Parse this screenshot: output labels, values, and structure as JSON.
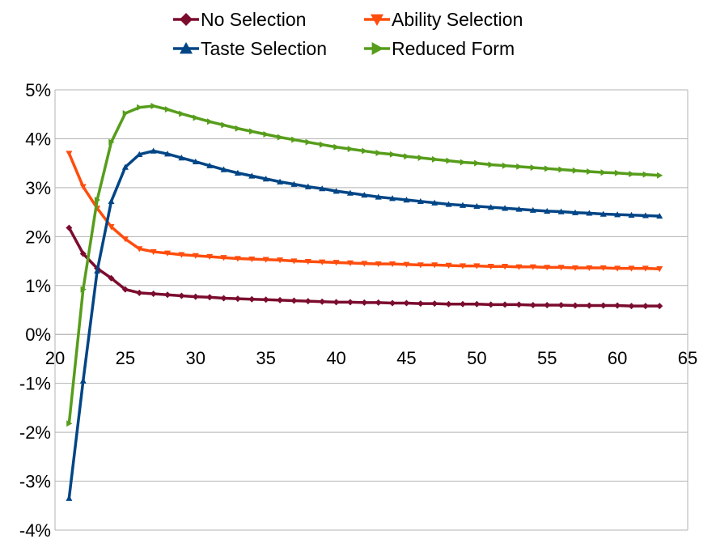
{
  "chart_data": {
    "type": "line",
    "title": "",
    "xlabel": "",
    "ylabel": "",
    "xlim": [
      20,
      65
    ],
    "ylim": [
      -4,
      5
    ],
    "x_ticks": [
      "20",
      "25",
      "30",
      "35",
      "40",
      "45",
      "50",
      "55",
      "60",
      "65"
    ],
    "y_ticks": [
      "5%",
      "4%",
      "3%",
      "2%",
      "1%",
      "0%",
      "-1%",
      "-2%",
      "-3%",
      "-4%"
    ],
    "grid": "horizontal",
    "legend_position": "top",
    "x": [
      21,
      22,
      23,
      24,
      25,
      26,
      27,
      28,
      29,
      30,
      31,
      32,
      33,
      34,
      35,
      36,
      37,
      38,
      39,
      40,
      41,
      42,
      43,
      44,
      45,
      46,
      47,
      48,
      49,
      50,
      51,
      52,
      53,
      54,
      55,
      56,
      57,
      58,
      59,
      60,
      61,
      62,
      63
    ],
    "series": [
      {
        "name": "No Selection",
        "color": "#7b0c2e",
        "marker": "diamond",
        "values": [
          2.18,
          1.65,
          1.35,
          1.15,
          0.92,
          0.85,
          0.83,
          0.81,
          0.79,
          0.77,
          0.76,
          0.74,
          0.73,
          0.72,
          0.71,
          0.7,
          0.69,
          0.68,
          0.67,
          0.66,
          0.66,
          0.65,
          0.65,
          0.64,
          0.64,
          0.63,
          0.63,
          0.62,
          0.62,
          0.62,
          0.61,
          0.61,
          0.61,
          0.6,
          0.6,
          0.6,
          0.59,
          0.59,
          0.59,
          0.59,
          0.58,
          0.58,
          0.58
        ]
      },
      {
        "name": "Ability Selection",
        "color": "#ff4d0d",
        "marker": "triangle-down",
        "values": [
          3.7,
          3.02,
          2.58,
          2.2,
          1.95,
          1.75,
          1.69,
          1.66,
          1.63,
          1.61,
          1.59,
          1.57,
          1.55,
          1.54,
          1.53,
          1.52,
          1.5,
          1.49,
          1.48,
          1.47,
          1.46,
          1.45,
          1.44,
          1.44,
          1.43,
          1.42,
          1.42,
          1.41,
          1.4,
          1.4,
          1.39,
          1.39,
          1.38,
          1.38,
          1.37,
          1.37,
          1.36,
          1.36,
          1.36,
          1.35,
          1.35,
          1.35,
          1.34
        ]
      },
      {
        "name": "Taste Selection",
        "color": "#004586",
        "marker": "triangle-up",
        "values": [
          -3.35,
          -0.95,
          1.3,
          2.72,
          3.42,
          3.68,
          3.75,
          3.69,
          3.61,
          3.53,
          3.45,
          3.37,
          3.3,
          3.24,
          3.18,
          3.12,
          3.07,
          3.02,
          2.98,
          2.93,
          2.89,
          2.85,
          2.81,
          2.78,
          2.75,
          2.72,
          2.69,
          2.66,
          2.64,
          2.62,
          2.6,
          2.58,
          2.56,
          2.54,
          2.52,
          2.51,
          2.49,
          2.48,
          2.46,
          2.45,
          2.44,
          2.43,
          2.42
        ]
      },
      {
        "name": "Reduced Form",
        "color": "#579d1c",
        "marker": "triangle-right",
        "values": [
          -1.82,
          0.92,
          2.75,
          3.93,
          4.52,
          4.64,
          4.67,
          4.6,
          4.51,
          4.43,
          4.35,
          4.28,
          4.21,
          4.15,
          4.09,
          4.03,
          3.98,
          3.93,
          3.88,
          3.83,
          3.79,
          3.75,
          3.71,
          3.68,
          3.64,
          3.61,
          3.58,
          3.55,
          3.52,
          3.5,
          3.47,
          3.45,
          3.43,
          3.41,
          3.39,
          3.37,
          3.35,
          3.33,
          3.31,
          3.3,
          3.28,
          3.27,
          3.25
        ]
      }
    ]
  }
}
